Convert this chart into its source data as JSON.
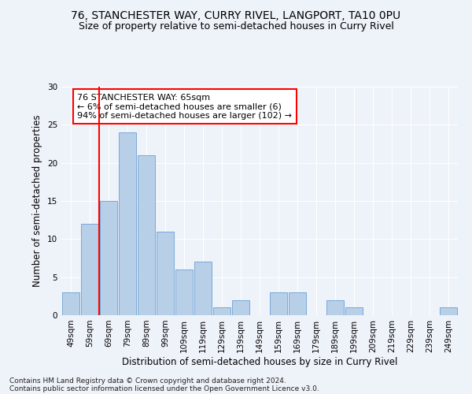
{
  "title": "76, STANCHESTER WAY, CURRY RIVEL, LANGPORT, TA10 0PU",
  "subtitle": "Size of property relative to semi-detached houses in Curry Rivel",
  "xlabel": "Distribution of semi-detached houses by size in Curry Rivel",
  "ylabel": "Number of semi-detached properties",
  "categories": [
    "49sqm",
    "59sqm",
    "69sqm",
    "79sqm",
    "89sqm",
    "99sqm",
    "109sqm",
    "119sqm",
    "129sqm",
    "139sqm",
    "149sqm",
    "159sqm",
    "169sqm",
    "179sqm",
    "189sqm",
    "199sqm",
    "209sqm",
    "219sqm",
    "229sqm",
    "239sqm",
    "249sqm"
  ],
  "values": [
    3,
    12,
    15,
    24,
    21,
    11,
    6,
    7,
    1,
    2,
    0,
    3,
    3,
    0,
    2,
    1,
    0,
    0,
    0,
    0,
    1
  ],
  "bar_color": "#b8cfe8",
  "bar_edge_color": "#6a9fd4",
  "vline_x": 1.5,
  "vline_color": "red",
  "annotation_text": "76 STANCHESTER WAY: 65sqm\n← 6% of semi-detached houses are smaller (6)\n94% of semi-detached houses are larger (102) →",
  "annotation_box_color": "white",
  "annotation_box_edge_color": "red",
  "ylim": [
    0,
    30
  ],
  "yticks": [
    0,
    5,
    10,
    15,
    20,
    25,
    30
  ],
  "footnote1": "Contains HM Land Registry data © Crown copyright and database right 2024.",
  "footnote2": "Contains public sector information licensed under the Open Government Licence v3.0.",
  "bg_color": "#eef2f9",
  "grid_color": "white",
  "title_fontsize": 10,
  "subtitle_fontsize": 9,
  "label_fontsize": 8.5,
  "tick_fontsize": 7.5,
  "annotation_fontsize": 8
}
